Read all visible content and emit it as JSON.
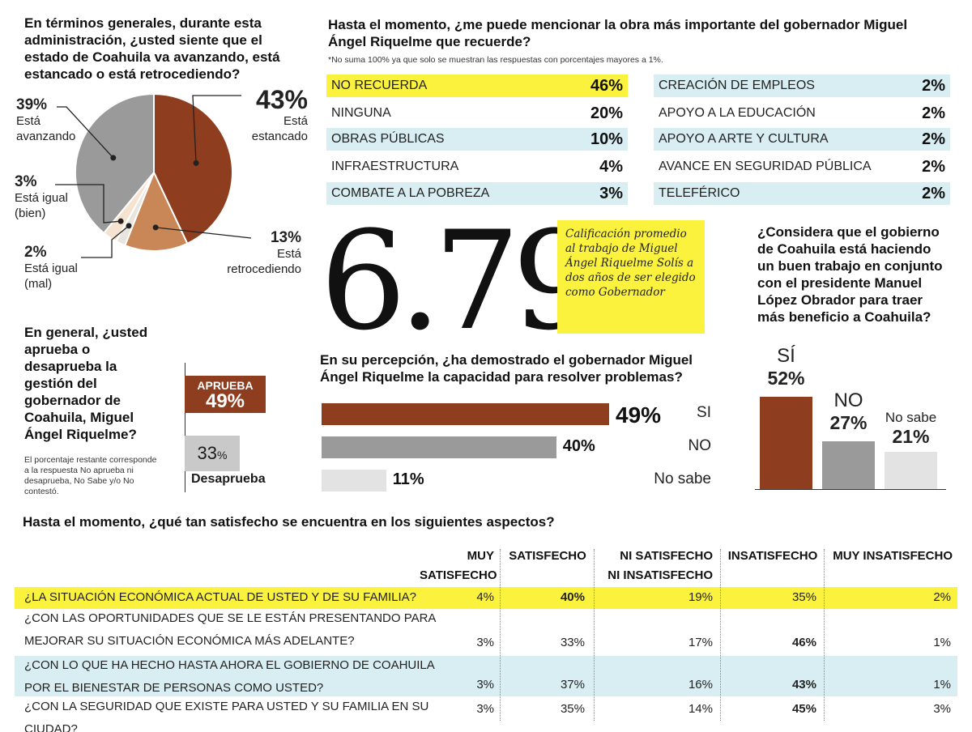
{
  "pie_section": {
    "question": "En términos generales, durante esta administración, ¿usted siente que el estado de Coahuila va avanzando, está estancado o está retrocediendo?"
  },
  "obra_section": {
    "question": "Hasta el momento, ¿me puede mencionar la obra más importante del gobernador Miguel Ángel Riquelme que recuerde?",
    "note": "*No suma 100% ya que solo se muestran las respuestas con porcentajes mayores a 1%.",
    "left_items": [
      {
        "label": "NO RECUERDA",
        "pct": "46%"
      },
      {
        "label": "NINGUNA",
        "pct": "20%"
      },
      {
        "label": "OBRAS PÚBLICAS",
        "pct": "10%"
      },
      {
        "label": "INFRAESTRUCTURA",
        "pct": "4%"
      },
      {
        "label": "COMBATE A LA POBREZA",
        "pct": "3%"
      }
    ],
    "right_items": [
      {
        "label": "CREACIÓN DE EMPLEOS",
        "pct": "2%"
      },
      {
        "label": "APOYO A LA EDUCACIÓN",
        "pct": "2%"
      },
      {
        "label": "APOYO A ARTE Y CULTURA",
        "pct": "2%"
      },
      {
        "label": "AVANCE EN SEGURIDAD PÚBLICA",
        "pct": "2%"
      },
      {
        "label": "TELEFÉRICO",
        "pct": "2%"
      }
    ]
  },
  "calificacion": {
    "value": "6.79",
    "description": "Calificación promedio al trabajo de Miguel Ángel Riquelme Solís a dos años de ser elegido como Gobernador"
  },
  "aprueba_section": {
    "question": "En general, ¿usted aprueba o desaprueba la gestión del gobernador de Coahuila, Miguel Ángel Riquelme?",
    "note": "El porcentaje restante corresponde a la respuesta No aprueba ni desaprueba, No Sabe y/o No contestó.",
    "aprueba_label": "APRUEBA",
    "aprueba_pct": "49%",
    "desaprueba_pct": "33",
    "desaprueba_pct_sign": "%",
    "desaprueba_label": "Desaprueba"
  },
  "capacidad_section": {
    "question": "En su percepción, ¿ha demostrado el gobernador Miguel Ángel Riquelme la capacidad para resolver problemas?"
  },
  "amlo_section": {
    "question": "¿Considera que el gobierno de Coahuila está haciendo un buen trabajo en conjunto con el presidente Manuel López Obrador para traer más beneficio a Coahuila?"
  },
  "satisfaccion": {
    "title": "Hasta el momento, ¿qué tan satisfecho se encuentra en los siguientes aspectos?",
    "headers": [
      "MUY",
      "SATISFECHO",
      "SATISFECHO",
      "NI SATISFECHO",
      "NI INSATISFECHO",
      "INSATISFECHO",
      "MUY INSATISFECHO"
    ],
    "rows": [
      {
        "q1": "¿LA SITUACIÓN ECONÓMICA ACTUAL DE USTED Y DE SU FAMILIA?",
        "q2": "",
        "vals": [
          "4%",
          "40%",
          "19%",
          "35%",
          "2%"
        ],
        "bold": 1
      },
      {
        "q1": "¿CON LAS OPORTUNIDADES QUE SE LE ESTÁN PRESENTANDO PARA",
        "q2": "MEJORAR SU SITUACIÓN ECONÓMICA MÁS ADELANTE?",
        "vals": [
          "3%",
          "33%",
          "17%",
          "46%",
          "1%"
        ],
        "bold": 3
      },
      {
        "q1": "¿CON LO QUE HA HECHO HASTA AHORA EL GOBIERNO DE COAHUILA",
        "q2": "POR EL BIENESTAR DE PERSONAS COMO USTED?",
        "vals": [
          "3%",
          "37%",
          "16%",
          "43%",
          "1%"
        ],
        "bold": 3
      },
      {
        "q1": "¿CON LA SEGURIDAD QUE EXISTE PARA USTED Y SU FAMILIA EN SU CIUDAD?",
        "q2": "",
        "vals": [
          "3%",
          "35%",
          "14%",
          "45%",
          "3%"
        ],
        "bold": 3
      }
    ]
  },
  "chart_data": [
    {
      "type": "pie",
      "title": "En términos generales, durante esta administración, ¿usted siente que el estado de Coahuila va avanzando, está estancado o está retrocediendo?",
      "slices": [
        {
          "label": "Está estancado",
          "value": 43,
          "pct_text": "43%",
          "color": "#8e3d1e"
        },
        {
          "label": "Está retrocediendo",
          "value": 13,
          "pct_text": "13%",
          "color": "#c98656"
        },
        {
          "label": "Está igual (mal)",
          "value": 2,
          "pct_text": "2%",
          "color": "#e8e4de"
        },
        {
          "label": "Está igual (bien)",
          "value": 3,
          "pct_text": "3%",
          "color": "#f6e3cf"
        },
        {
          "label": "Está avanzando",
          "value": 39,
          "pct_text": "39%",
          "color": "#9a9a9a"
        }
      ]
    },
    {
      "type": "bar",
      "orientation": "horizontal",
      "title": "En su percepción, ¿ha demostrado el gobernador Miguel Ángel Riquelme la capacidad para resolver problemas?",
      "categories": [
        "SI",
        "NO",
        "No sabe"
      ],
      "values": [
        49,
        40,
        11
      ],
      "labels": [
        "49%",
        "40%",
        "11%"
      ],
      "colors": [
        "#8e3d1e",
        "#9a9a9a",
        "#e3e3e3"
      ]
    },
    {
      "type": "bar",
      "orientation": "vertical",
      "title": "¿Considera que el gobierno de Coahuila está haciendo un buen trabajo en conjunto con el presidente Manuel López Obrador para traer más beneficio a Coahuila?",
      "categories": [
        "SÍ",
        "NO",
        "No sabe"
      ],
      "values": [
        52,
        27,
        21
      ],
      "labels": [
        "52%",
        "27%",
        "21%"
      ],
      "colors": [
        "#8e3d1e",
        "#9a9a9a",
        "#e3e3e3"
      ]
    }
  ]
}
